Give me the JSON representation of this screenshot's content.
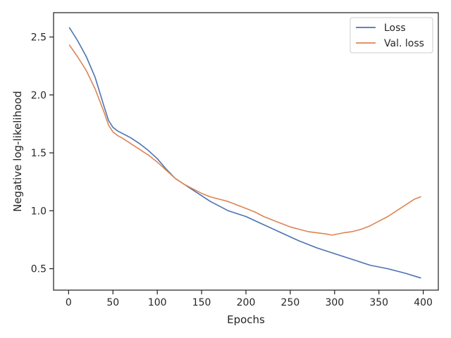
{
  "chart_data": {
    "type": "line",
    "title": "",
    "xlabel": "Epochs",
    "ylabel": "Negative log-likelihood",
    "xlim": [
      -17,
      417
    ],
    "ylim": [
      0.315,
      2.71
    ],
    "xticks": [
      0,
      50,
      100,
      150,
      200,
      250,
      300,
      350,
      400
    ],
    "yticks": [
      0.5,
      1.0,
      1.5,
      2.0,
      2.5
    ],
    "ytick_labels": [
      "0.5",
      "1.0",
      "1.5",
      "2.0",
      "2.5"
    ],
    "grid": false,
    "legend_position": "top-right",
    "series": [
      {
        "name": "Loss",
        "color": "#4c72b0",
        "x": [
          1,
          10,
          20,
          30,
          40,
          45,
          50,
          55,
          60,
          70,
          80,
          90,
          100,
          110,
          120,
          130,
          140,
          150,
          160,
          170,
          180,
          200,
          220,
          240,
          260,
          280,
          300,
          320,
          340,
          360,
          380,
          397
        ],
        "y": [
          2.58,
          2.47,
          2.33,
          2.15,
          1.9,
          1.78,
          1.72,
          1.69,
          1.67,
          1.63,
          1.58,
          1.52,
          1.45,
          1.36,
          1.28,
          1.23,
          1.18,
          1.13,
          1.08,
          1.04,
          1.0,
          0.95,
          0.88,
          0.81,
          0.74,
          0.68,
          0.63,
          0.58,
          0.53,
          0.5,
          0.46,
          0.42
        ]
      },
      {
        "name": "Val. loss",
        "color": "#dd8452",
        "x": [
          1,
          10,
          20,
          30,
          40,
          45,
          50,
          55,
          60,
          70,
          80,
          90,
          100,
          110,
          120,
          130,
          140,
          150,
          160,
          170,
          180,
          190,
          200,
          210,
          220,
          230,
          240,
          250,
          260,
          270,
          280,
          290,
          297,
          310,
          320,
          330,
          340,
          350,
          360,
          370,
          380,
          390,
          397
        ],
        "y": [
          2.43,
          2.33,
          2.21,
          2.05,
          1.85,
          1.74,
          1.68,
          1.65,
          1.63,
          1.58,
          1.53,
          1.48,
          1.42,
          1.35,
          1.28,
          1.23,
          1.19,
          1.15,
          1.12,
          1.1,
          1.08,
          1.05,
          1.02,
          0.99,
          0.95,
          0.92,
          0.89,
          0.86,
          0.84,
          0.82,
          0.81,
          0.8,
          0.79,
          0.81,
          0.82,
          0.84,
          0.87,
          0.91,
          0.95,
          1.0,
          1.05,
          1.1,
          1.12
        ]
      }
    ]
  }
}
